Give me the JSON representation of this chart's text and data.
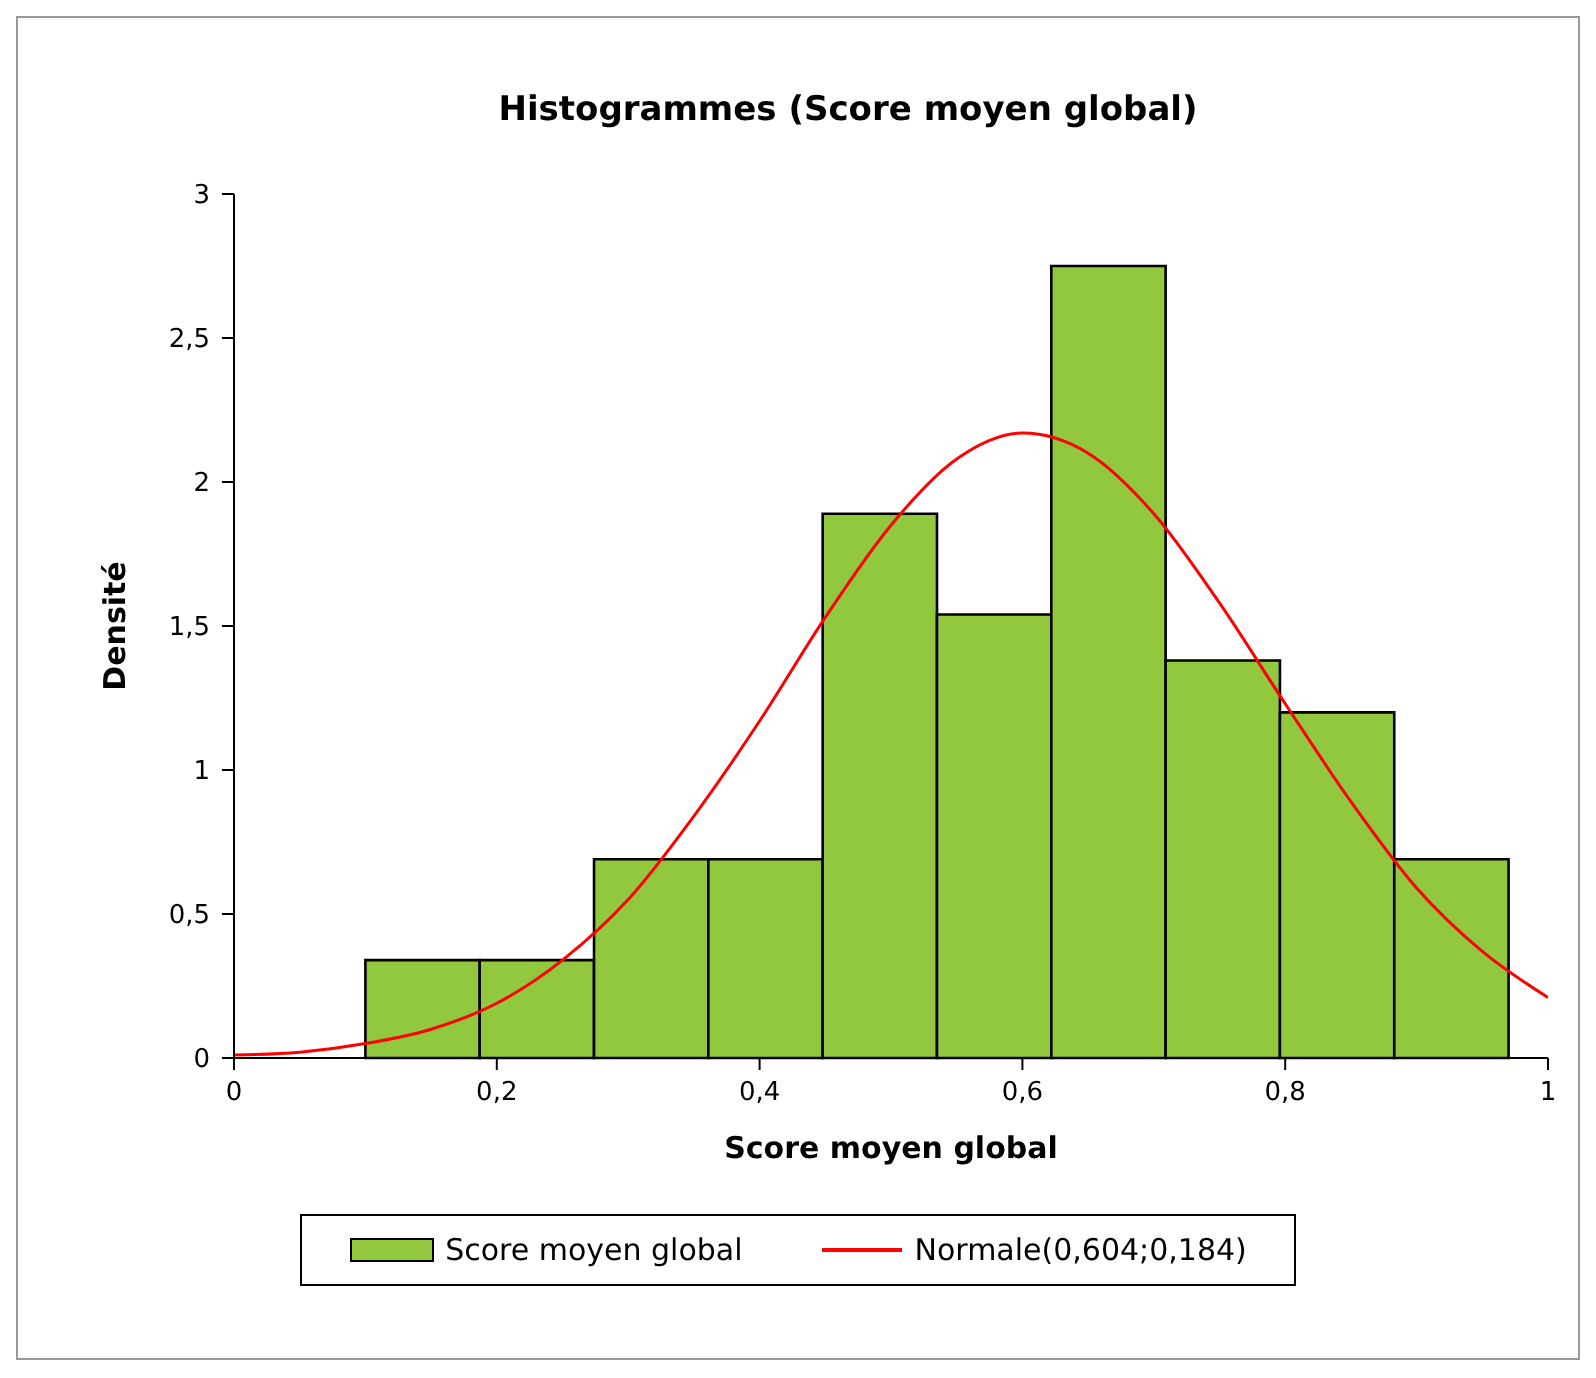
{
  "chart_data": {
    "type": "histogram",
    "title": "Histogrammes (Score moyen global)",
    "xlabel": "Score moyen global",
    "ylabel": "Densité",
    "bins": [
      0.1,
      0.187,
      0.274,
      0.361,
      0.448,
      0.535,
      0.622,
      0.709,
      0.796,
      0.883,
      0.97
    ],
    "series": [
      {
        "name": "Score moyen global",
        "color": "#92c83e",
        "values": [
          0.34,
          0.34,
          0.69,
          0.69,
          1.89,
          1.54,
          2.75,
          1.38,
          1.2,
          0.69
        ]
      },
      {
        "type": "line",
        "name": "Normale(0,604;0,184)",
        "color": "#ff0000",
        "x": [
          0,
          0.05,
          0.1,
          0.15,
          0.2,
          0.25,
          0.3,
          0.35,
          0.4,
          0.45,
          0.5,
          0.55,
          0.6,
          0.65,
          0.7,
          0.75,
          0.8,
          0.85,
          0.9,
          0.95,
          1
        ],
        "values": [
          0.01,
          0.02,
          0.05,
          0.1,
          0.19,
          0.34,
          0.55,
          0.84,
          1.17,
          1.53,
          1.85,
          2.08,
          2.17,
          2.1,
          1.89,
          1.58,
          1.23,
          0.89,
          0.59,
          0.37,
          0.21
        ]
      }
    ],
    "xlim": [
      0,
      1
    ],
    "xticks": [
      0,
      {
        "value": 0.2,
        "label": "0,2"
      },
      {
        "value": 0.4,
        "label": "0,4"
      },
      {
        "value": 0.6,
        "label": "0,6"
      },
      {
        "value": 0.8,
        "label": "0,8"
      },
      1
    ],
    "ylim": [
      0,
      3
    ],
    "yticks": [
      0,
      {
        "value": 0.5,
        "label": "0,5"
      },
      1,
      {
        "value": 1.5,
        "label": "1,5"
      },
      2,
      {
        "value": 2.5,
        "label": "2,5"
      },
      3
    ],
    "legend": "bottom",
    "grid": false,
    "marker": "none",
    "line_style": "solid"
  }
}
